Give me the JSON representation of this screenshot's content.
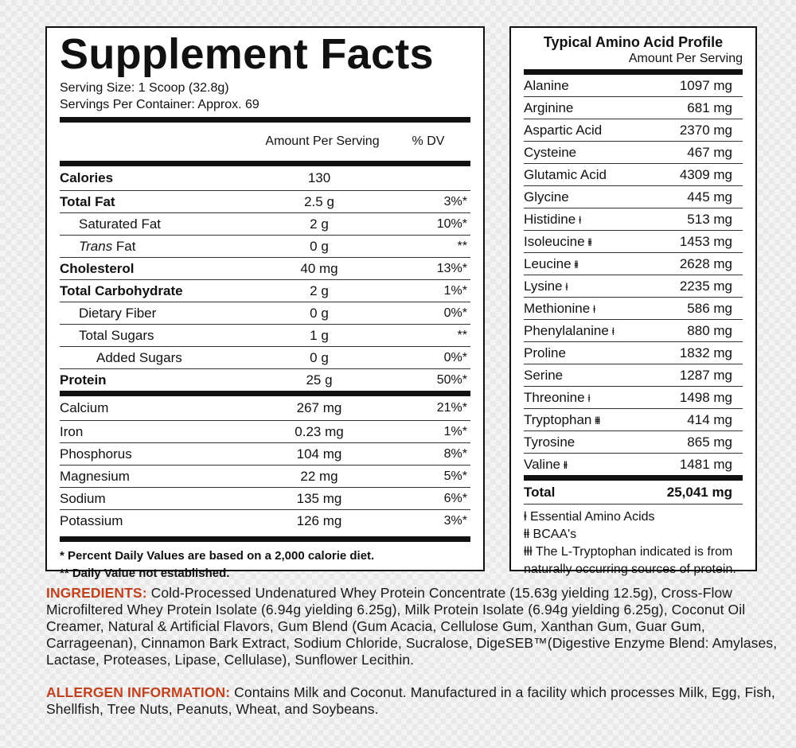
{
  "supplement_facts": {
    "title": "Supplement Facts",
    "serving_size": "Serving Size: 1 Scoop (32.8g)",
    "servings_per_container": "Servings Per Container: Approx. 69",
    "header_amount": "Amount Per Serving",
    "header_dv": "% DV",
    "rows": [
      {
        "name": "Calories",
        "amount": "130",
        "dv": ""
      },
      {
        "name": "Total Fat",
        "amount": "2.5 g",
        "dv": "3%*"
      },
      {
        "name": "Saturated Fat",
        "amount": "2 g",
        "dv": "10%*"
      },
      {
        "name_italic": "Trans",
        "name_rest": " Fat",
        "amount": "0 g",
        "dv": "**"
      },
      {
        "name": "Cholesterol",
        "amount": "40 mg",
        "dv": "13%*"
      },
      {
        "name": "Total Carbohydrate",
        "amount": "2 g",
        "dv": "1%*"
      },
      {
        "name": "Dietary Fiber",
        "amount": "0 g",
        "dv": "0%*"
      },
      {
        "name": "Total Sugars",
        "amount": "1 g",
        "dv": "**"
      },
      {
        "name": "Added Sugars",
        "amount": "0 g",
        "dv": "0%*"
      },
      {
        "name": "Protein",
        "amount": "25 g",
        "dv": "50%*"
      },
      {
        "name": "Calcium",
        "amount": "267 mg",
        "dv": "21%*"
      },
      {
        "name": "Iron",
        "amount": "0.23 mg",
        "dv": "1%*"
      },
      {
        "name": "Phosphorus",
        "amount": "104 mg",
        "dv": "8%*"
      },
      {
        "name": "Magnesium",
        "amount": "22 mg",
        "dv": "5%*"
      },
      {
        "name": "Sodium",
        "amount": "135 mg",
        "dv": "6%*"
      },
      {
        "name": "Potassium",
        "amount": "126 mg",
        "dv": "3%*"
      }
    ],
    "footnote_1": "* Percent Daily Values are based on a 2,000 calorie diet.",
    "footnote_2": "** Daily Value not established."
  },
  "amino_profile": {
    "title": "Typical Amino Acid Profile",
    "subtitle": "Amount Per Serving",
    "rows": [
      {
        "name": "Alanine",
        "sym": "",
        "amount": "1097 mg"
      },
      {
        "name": "Arginine",
        "sym": "",
        "amount": "681 mg"
      },
      {
        "name": "Aspartic Acid",
        "sym": "",
        "amount": "2370 mg"
      },
      {
        "name": "Cysteine",
        "sym": "",
        "amount": "467 mg"
      },
      {
        "name": "Glutamic Acid",
        "sym": "",
        "amount": "4309 mg"
      },
      {
        "name": "Glycine",
        "sym": "",
        "amount": "445 mg"
      },
      {
        "name": "Histidine",
        "sym": "ⱡ",
        "amount": "513 mg"
      },
      {
        "name": "Isoleucine",
        "sym": "ⱡⱡ",
        "amount": "1453 mg"
      },
      {
        "name": "Leucine",
        "sym": "ⱡⱡ",
        "amount": "2628 mg"
      },
      {
        "name": "Lysine",
        "sym": "ⱡ",
        "amount": "2235 mg"
      },
      {
        "name": "Methionine",
        "sym": "ⱡ",
        "amount": "586 mg"
      },
      {
        "name": "Phenylalanine",
        "sym": "ⱡ",
        "amount": "880 mg"
      },
      {
        "name": "Proline",
        "sym": "",
        "amount": "1832 mg"
      },
      {
        "name": "Serine",
        "sym": "",
        "amount": "1287 mg"
      },
      {
        "name": "Threonine",
        "sym": "ⱡ",
        "amount": "1498 mg"
      },
      {
        "name": "Tryptophan",
        "sym": "ⱡⱡⱡ",
        "amount": "414 mg"
      },
      {
        "name": "Tyrosine",
        "sym": "",
        "amount": "865 mg"
      },
      {
        "name": "Valine",
        "sym": "ⱡⱡ",
        "amount": "1481 mg"
      }
    ],
    "total_label": "Total",
    "total_value": "25,041 mg",
    "note_1": "ⱡ Essential Amino Acids",
    "note_2": "ⱡⱡ BCAA's",
    "note_3": "ⱡⱡⱡ The L-Tryptophan indicated is from naturally occurring sources of protein."
  },
  "ingredients": {
    "label": "INGREDIENTS:",
    "text": " Cold-Processed Undenatured Whey Protein Concentrate (15.63g yielding 12.5g), Cross-Flow Microfiltered Whey Protein Isolate (6.94g yielding 6.25g), Milk Protein Isolate (6.94g yielding 6.25g), Coconut Oil Creamer, Natural & Artificial Flavors, Gum Blend (Gum Acacia, Cellulose Gum, Xanthan Gum, Guar Gum, Carrageenan), Cinnamon Bark Extract, Sodium Chloride, Sucralose, DigeSEB™(Digestive Enzyme Blend: Amylases, Lactase, Proteases, Lipase, Cellulase), Sunflower Lecithin."
  },
  "allergen": {
    "label": "ALLERGEN INFORMATION:",
    "text": " Contains Milk and Coconut. Manufactured in a facility which processes Milk, Egg, Fish, Shellfish, Tree Nuts, Peanuts, Wheat, and Soybeans."
  },
  "colors": {
    "accent_label": "#c0421f",
    "border": "#111111"
  }
}
